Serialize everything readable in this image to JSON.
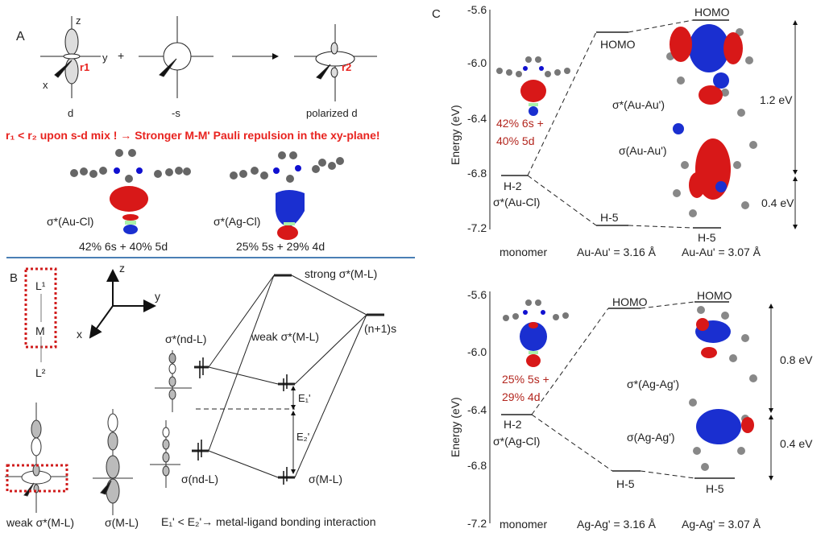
{
  "panelA": {
    "label": "A",
    "axis_z": "z",
    "axis_y": "y",
    "axis_x": "x",
    "r1": "r1",
    "r2": "r2",
    "plus": "+",
    "orb_d": "d",
    "orb_s": "-s",
    "orb_polarized": "polarized d",
    "statement": "r₁ < r₂ upon s-d mix ! → Stronger M-M' Pauli repulsion in the xy-plane!",
    "au_label": "σ*(Au-Cl)",
    "au_comp": "42% 6s + 40% 5d",
    "ag_label": "σ*(Ag-Cl)",
    "ag_comp": "25% 5s + 29% 4d",
    "colors": {
      "red": "#e8231f",
      "lobe_red": "#d81818",
      "lobe_blue": "#1a2fd0",
      "divider": "#4a7fb5"
    }
  },
  "panelB": {
    "label": "B",
    "L1": "L¹",
    "M": "M",
    "L2": "L²",
    "axis_z": "z",
    "axis_y": "y",
    "axis_x": "x",
    "strong": "strong σ*(M-L)",
    "ns1": "(n+1)s",
    "snd_star": "σ*(nd-L)",
    "weak": "weak σ*(M-L)",
    "E1": "E₁'",
    "E2": "E₂'",
    "snd": "σ(nd-L)",
    "sml": "σ(M-L)",
    "bottom_weak": "weak σ*(M-L)",
    "bottom_sml": "σ(M-L)",
    "conclusion": "E₁' < E₂'→ metal-ligand bonding interaction"
  },
  "panelC": {
    "label": "C",
    "ylabel": "Energy (eV)",
    "top": {
      "ticks": [
        "-5.6",
        "-6.0",
        "-6.4",
        "-6.8",
        "-7.2"
      ],
      "comp_line1": "42% 6s +",
      "comp_line2": "40% 5d",
      "h2": "H-2",
      "mono_orb": "σ*(Au-Cl)",
      "homo1": "HOMO",
      "homo2": "HOMO",
      "h5a": "H-5",
      "h5b": "H-5",
      "sig_star": "σ*(Au-Au')",
      "sig": "σ(Au-Au')",
      "gap1": "1.2 eV",
      "gap2": "0.4 eV",
      "x_mono": "monomer",
      "x_d1": "Au-Au' = 3.16 Å",
      "x_d2": "Au-Au' = 3.07 Å"
    },
    "bottom": {
      "ticks": [
        "-5.6",
        "-6.0",
        "-6.4",
        "-6.8",
        "-7.2"
      ],
      "comp_line1": "25% 5s +",
      "comp_line2": "29% 4d",
      "h2": "H-2",
      "mono_orb": "σ*(Ag-Cl)",
      "homo1": "HOMO",
      "homo2": "HOMO",
      "h5a": "H-5",
      "h5b": "H-5",
      "sig_star": "σ*(Ag-Ag')",
      "sig": "σ(Ag-Ag')",
      "gap1": "0.8 eV",
      "gap2": "0.4 eV",
      "x_mono": "monomer",
      "x_d1": "Ag-Ag' = 3.16 Å",
      "x_d2": "Ag-Ag' = 3.07 Å"
    }
  }
}
